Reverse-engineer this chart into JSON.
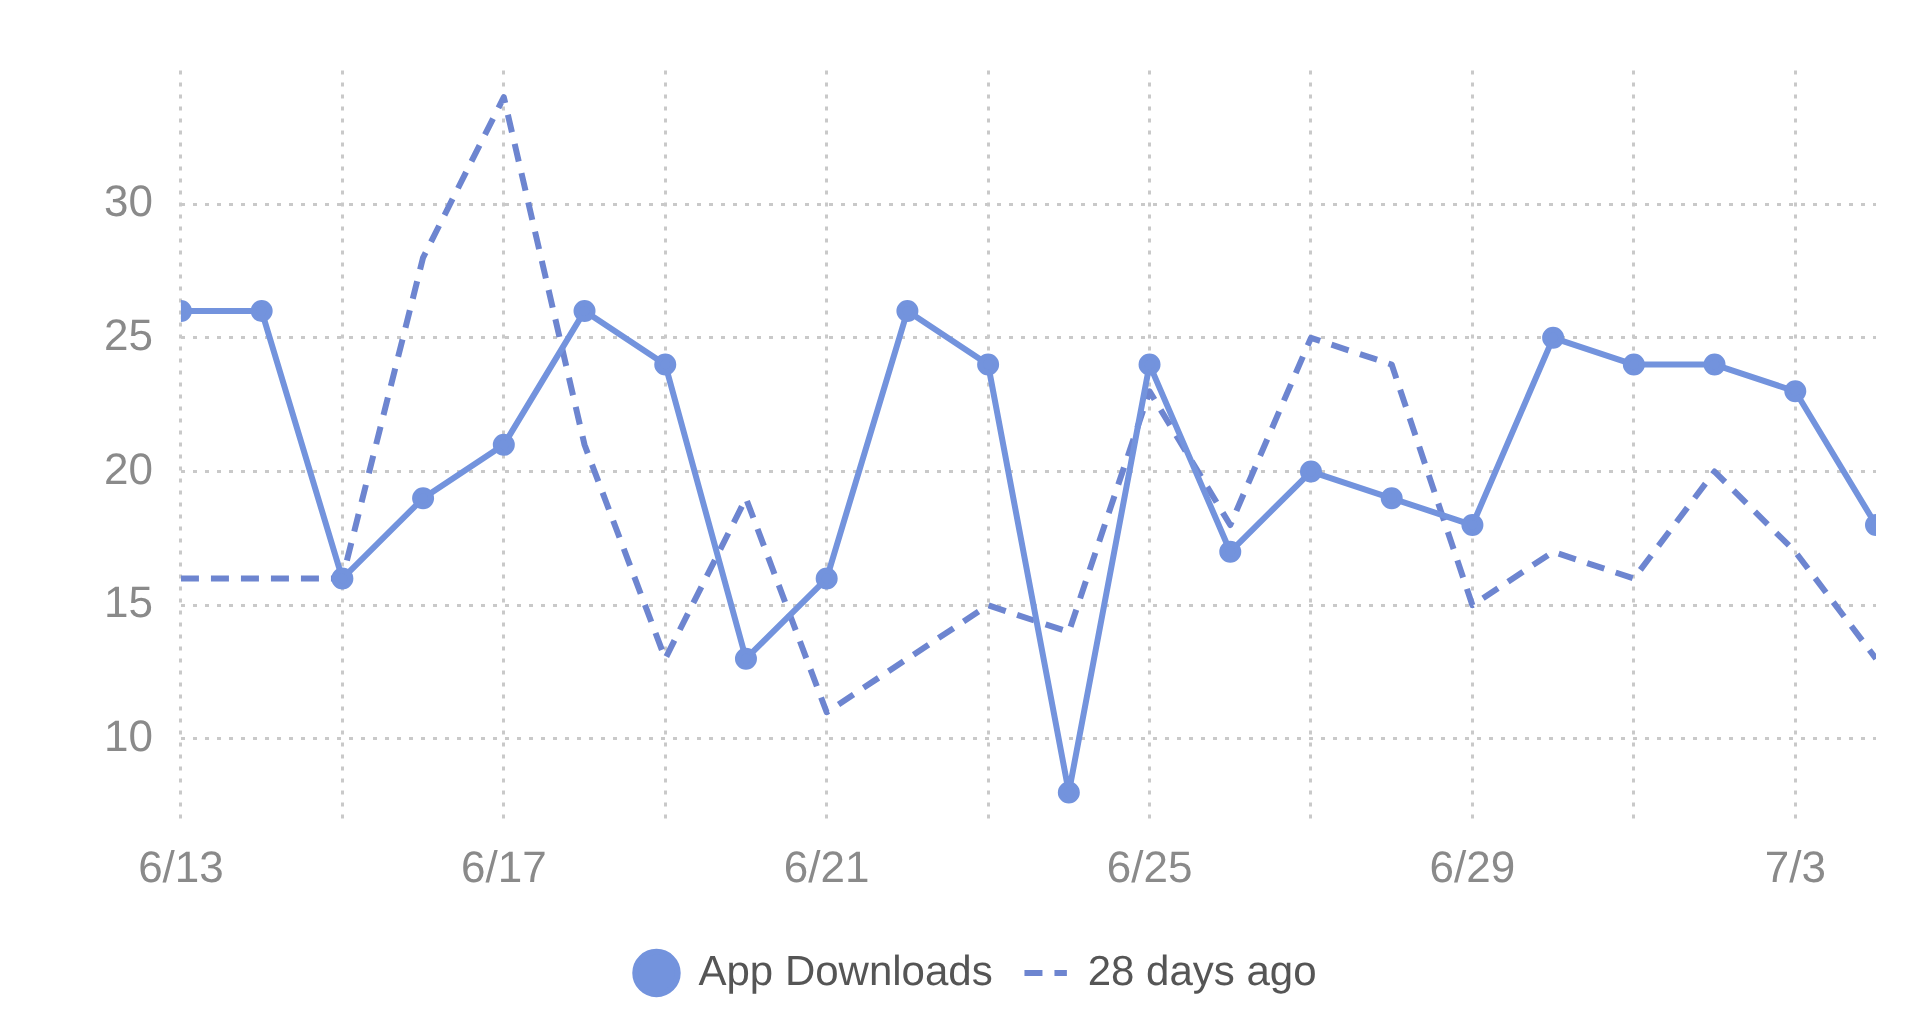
{
  "chart_data": {
    "type": "line",
    "x": [
      "--06-13",
      "--06-14",
      "--06-15",
      "--06-16",
      "--06-17",
      "--06-18",
      "--06-19",
      "--06-20",
      "--06-21",
      "--06-22",
      "--06-23",
      "--06-24",
      "--06-25",
      "--06-26",
      "--06-27",
      "--06-28",
      "--06-29",
      "--06-30",
      "--07-01",
      "--07-02",
      "--07-03",
      "--07-04"
    ],
    "series": [
      {
        "name": "App Downloads",
        "color": "#7393dd",
        "marker": "circle",
        "line_style": "solid",
        "values": [
          26,
          26,
          16,
          19,
          21,
          26,
          24,
          13,
          16,
          26,
          24,
          8,
          24,
          17,
          20,
          19,
          18,
          25,
          24,
          24,
          23,
          18
        ]
      },
      {
        "name": "28 days ago",
        "color": "#6d85d0",
        "marker": "none",
        "line_style": "dashed",
        "values": [
          16,
          16,
          16,
          28,
          34,
          21,
          13,
          19,
          11,
          13,
          15,
          14,
          23,
          18,
          25,
          24,
          15,
          17,
          16,
          20,
          17,
          13
        ]
      }
    ],
    "xlim": [
      "--06-13",
      "--07-04"
    ],
    "xticks": [
      {
        "value": "--06-13",
        "label": "6/13"
      },
      {
        "value": "--06-15",
        "label": null
      },
      {
        "value": "--06-17",
        "label": "6/17"
      },
      {
        "value": "--06-19",
        "label": null
      },
      {
        "value": "--06-21",
        "label": "6/21"
      },
      {
        "value": "--06-23",
        "label": null
      },
      {
        "value": "--06-25",
        "label": "6/25"
      },
      {
        "value": "--06-27",
        "label": null
      },
      {
        "value": "--06-29",
        "label": "6/29"
      },
      {
        "value": "--07-01",
        "label": null
      },
      {
        "value": "--07-03",
        "label": "7/3"
      }
    ],
    "ylim": [
      7,
      35
    ],
    "yticks": [
      10,
      15,
      20,
      25,
      30
    ],
    "grid": true,
    "legend": "bottom"
  }
}
